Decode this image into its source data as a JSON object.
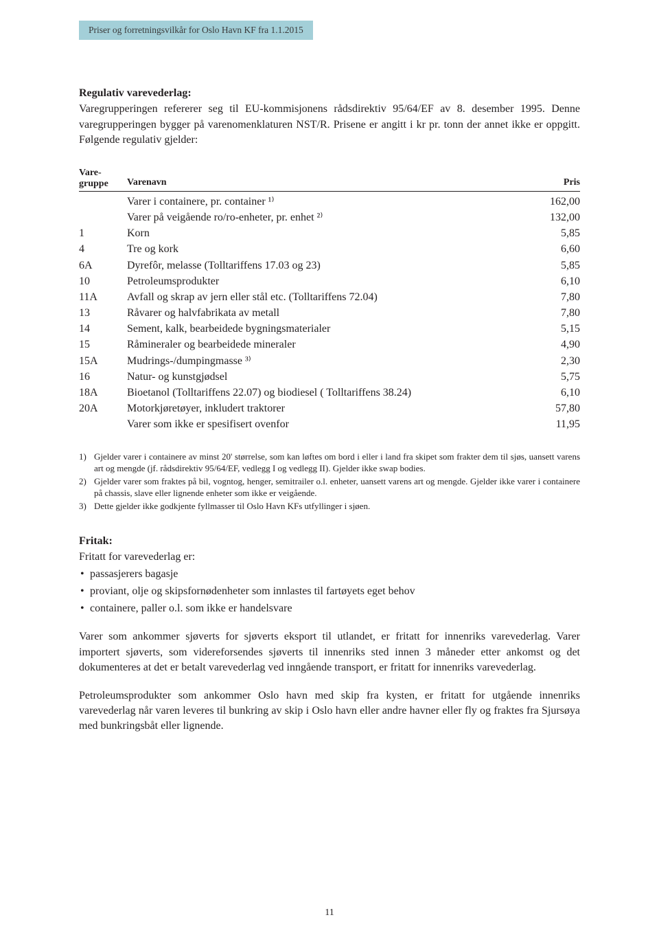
{
  "header": {
    "tab_text": "Priser og forretningsvilkår for Oslo Havn KF fra 1.1.2015"
  },
  "intro": {
    "title": "Regulativ varevederlag:",
    "p1": "Varegrupperingen refererer seg til EU-kommisjonens rådsdirektiv 95/64/EF av 8. desember 1995. Denne varegrupperingen bygger på varenomenklaturen NST/R. Prisene er angitt i kr pr. tonn der annet ikke er oppgitt. Følgende regulativ gjelder:"
  },
  "table": {
    "header": {
      "group_line1": "Vare-",
      "group_line2": "gruppe",
      "name": "Varenavn",
      "price": "Pris"
    },
    "rows": [
      {
        "group": "",
        "name": "Varer i containere, pr. container ¹⁾",
        "price": "162,00"
      },
      {
        "group": "",
        "name": "Varer på veigående ro/ro-enheter, pr. enhet ²⁾",
        "price": "132,00"
      },
      {
        "group": "1",
        "name": "Korn",
        "price": "5,85"
      },
      {
        "group": "4",
        "name": "Tre og kork",
        "price": "6,60"
      },
      {
        "group": "6A",
        "name": "Dyrefôr, melasse (Tolltariffens 17.03 og 23)",
        "price": "5,85"
      },
      {
        "group": "10",
        "name": "Petroleumsprodukter",
        "price": "6,10"
      },
      {
        "group": "11A",
        "name": "Avfall og skrap av jern eller stål etc. (Tolltariffens 72.04)",
        "price": "7,80"
      },
      {
        "group": "13",
        "name": "Råvarer og halvfabrikata av metall",
        "price": "7,80"
      },
      {
        "group": "14",
        "name": "Sement, kalk, bearbeidede bygningsmaterialer",
        "price": "5,15"
      },
      {
        "group": "15",
        "name": "Råmineraler og bearbeidede mineraler",
        "price": "4,90"
      },
      {
        "group": "15A",
        "name": "Mudrings-/dumpingmasse ³⁾",
        "price": "2,30"
      },
      {
        "group": "16",
        "name": "Natur- og kunstgjødsel",
        "price": "5,75"
      },
      {
        "group": "18A",
        "name": "Bioetanol (Tolltariffens 22.07) og biodiesel ( Tolltariffens 38.24)",
        "price": "6,10"
      },
      {
        "group": "20A",
        "name": "Motorkjøretøyer, inkludert traktorer",
        "price": "57,80"
      },
      {
        "group": "",
        "name": "Varer som ikke er spesifisert ovenfor",
        "price": "11,95"
      }
    ]
  },
  "footnotes": [
    {
      "num": "1)",
      "text": "Gjelder varer i containere av minst 20' størrelse, som kan løftes om bord i eller i land fra skipet som frakter dem til sjøs, uansett varens art og mengde (jf. rådsdirektiv 95/64/EF, vedlegg I og vedlegg II). Gjelder ikke swap bodies."
    },
    {
      "num": "2)",
      "text": "Gjelder varer som fraktes på bil, vogntog, henger, semitrailer o.l. enheter, uansett varens art og mengde. Gjelder ikke varer i containere på chassis, slave eller lignende enheter som ikke er veigående."
    },
    {
      "num": "3)",
      "text": "Dette gjelder ikke godkjente fyllmasser til Oslo Havn KFs utfyllinger i sjøen."
    }
  ],
  "fritak": {
    "title": "Fritak:",
    "intro": "Fritatt for varevederlag er:",
    "items": [
      "passasjerers bagasje",
      "proviant, olje og skipsfornødenheter som innlastes til fartøyets eget behov",
      "containere, paller o.l. som ikke er handelsvare"
    ]
  },
  "para1": "Varer som ankommer sjøverts for sjøverts eksport til utlandet, er fritatt for innenriks varevederlag. Varer importert sjøverts, som videreforsendes sjøverts til innenriks sted innen 3 måneder etter ankomst og det dokumenteres at det er betalt varevederlag ved inngående transport, er fritatt for innenriks varevederlag.",
  "para2": "Petroleumsprodukter som ankommer Oslo havn med skip fra kysten, er fritatt for utgående innenriks varevederlag når varen leveres til bunkring av skip i Oslo havn eller andre havner eller fly og fraktes fra Sjursøya med bunkringsbåt eller lignende.",
  "page_number": "11",
  "colors": {
    "tab_bg": "#a3cfd8",
    "text": "#231f20",
    "background": "#ffffff"
  }
}
